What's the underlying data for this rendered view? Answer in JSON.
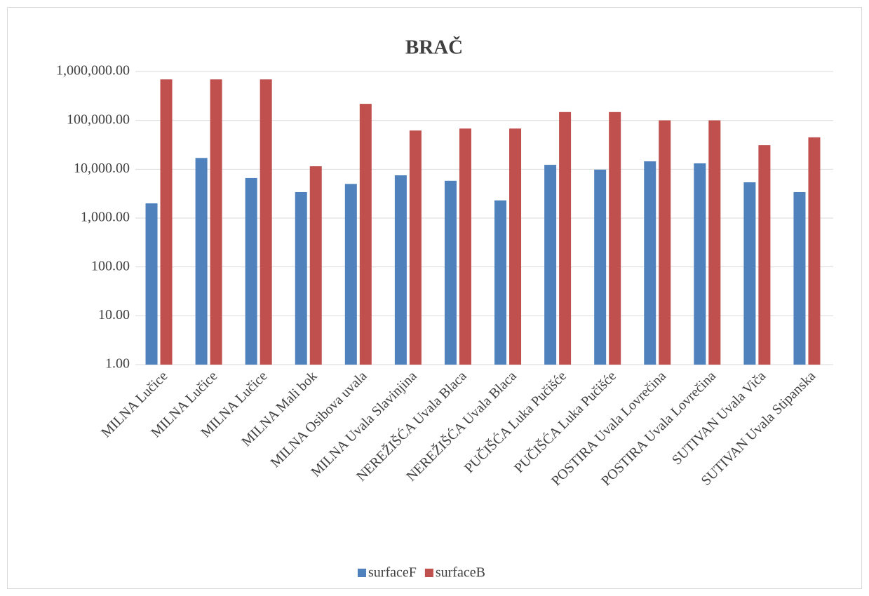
{
  "chart_data": {
    "type": "bar",
    "title": "BRAČ",
    "categories": [
      "MILNA Lučice",
      "MILNA Lučice",
      "MILNA Lučice",
      "MILNA Mali bok",
      "MILNA Osibova uvala",
      "MILNA Uvala Slavinjina",
      "NEREŽIŠĆA Uvala Blaca",
      "NEREŽIŠĆA Uvala Blaca",
      "PUČIŠĆA Luka Pučišće",
      "PUČIŠĆA Luka Pučišće",
      "POSTIRA Uvala Lovrečina",
      "POSTIRA Uvala Lovrečina",
      "SUTIVAN Uvala Viča",
      "SUTIVAN Uvala Stipanska"
    ],
    "series": [
      {
        "name": "surfaceF",
        "color": "#4f81bd",
        "values": [
          2000,
          17000,
          6600,
          3400,
          5000,
          7500,
          5800,
          2300,
          12300,
          9800,
          14500,
          13200,
          5400,
          3400
        ]
      },
      {
        "name": "surfaceB",
        "color": "#c0504d",
        "values": [
          690000,
          690000,
          690000,
          11500,
          218000,
          62000,
          68000,
          68000,
          148000,
          148000,
          100000,
          100000,
          31000,
          45000
        ]
      }
    ],
    "log_scale": true,
    "ylim": [
      1,
      1000000
    ],
    "yticks": [
      {
        "value": 1,
        "label": "1.00"
      },
      {
        "value": 10,
        "label": "10.00"
      },
      {
        "value": 100,
        "label": "100.00"
      },
      {
        "value": 1000,
        "label": "1,000.00"
      },
      {
        "value": 10000,
        "label": "10,000.00"
      },
      {
        "value": 100000,
        "label": "100,000.00"
      },
      {
        "value": 1000000,
        "label": "1,000,000.00"
      }
    ],
    "grid": true,
    "legend": "bottom"
  }
}
